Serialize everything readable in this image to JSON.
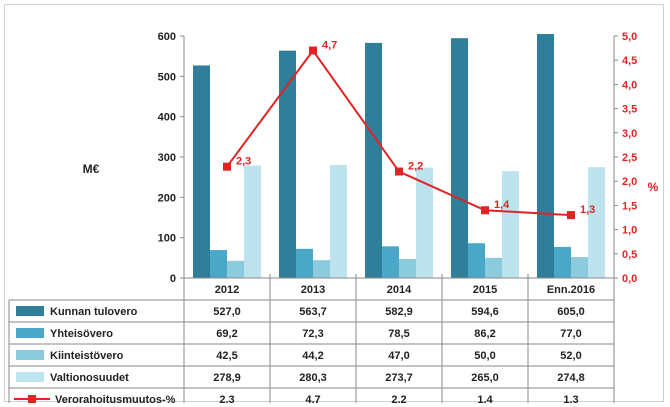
{
  "chart_data": {
    "type": "bar",
    "categories": [
      "2012",
      "2013",
      "2014",
      "2015",
      "Enn.2016"
    ],
    "series": [
      {
        "name": "Kunnan tulovero",
        "type": "bar",
        "axis": "left",
        "color": "#2f7f9a",
        "values": [
          527.0,
          563.7,
          582.9,
          594.6,
          605.0
        ],
        "labels": [
          "527,0",
          "563,7",
          "582,9",
          "594,6",
          "605,0"
        ]
      },
      {
        "name": "Yhteisövero",
        "type": "bar",
        "axis": "left",
        "color": "#4aa7c7",
        "values": [
          69.2,
          72.3,
          78.5,
          86.2,
          77.0
        ],
        "labels": [
          "69,2",
          "72,3",
          "78,5",
          "86,2",
          "77,0"
        ]
      },
      {
        "name": "Kiinteistövero",
        "type": "bar",
        "axis": "left",
        "color": "#8ccbde",
        "values": [
          42.5,
          44.2,
          47.0,
          50.0,
          52.0
        ],
        "labels": [
          "42,5",
          "44,2",
          "47,0",
          "50,0",
          "52,0"
        ]
      },
      {
        "name": "Valtionosuudet",
        "type": "bar",
        "axis": "left",
        "color": "#bde3ee",
        "values": [
          278.9,
          280.3,
          273.7,
          265.0,
          274.8
        ],
        "labels": [
          "278,9",
          "280,3",
          "273,7",
          "265,0",
          "274,8"
        ]
      },
      {
        "name": "Verorahoitusmuutos-%",
        "type": "line",
        "axis": "right",
        "color": "#e02424",
        "values": [
          2.3,
          4.7,
          2.2,
          1.4,
          1.3
        ],
        "labels": [
          "2,3",
          "4,7",
          "2,2",
          "1,4",
          "1,3"
        ]
      }
    ],
    "ylabel": "M€",
    "y2label": "%",
    "ylim": [
      0,
      600
    ],
    "y2lim": [
      0,
      5.0
    ],
    "yticks": [
      "0",
      "100",
      "200",
      "300",
      "400",
      "500",
      "600"
    ],
    "y2ticks": [
      "0,0",
      "0,5",
      "1,0",
      "1,5",
      "2,0",
      "2,5",
      "3,0",
      "3,5",
      "4,0",
      "4,5",
      "5,0"
    ],
    "legend": "data-table-left",
    "grid": false,
    "axis_color_right": "#e02424"
  }
}
